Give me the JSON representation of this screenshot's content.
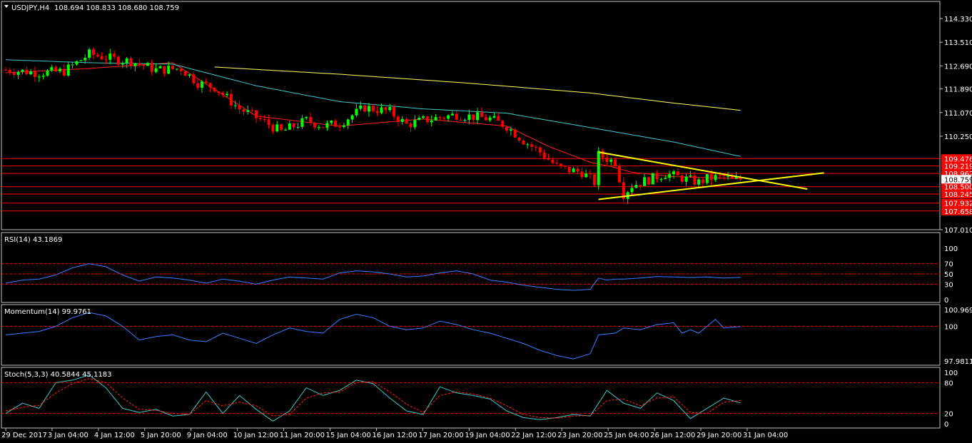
{
  "header": {
    "symbol": "USDJPY,H4",
    "ohlc": "108.694 108.833 108.680 108.759"
  },
  "colors": {
    "background": "#000000",
    "frame": "#c0c0c0",
    "bull": "#00ff00",
    "bear": "#ff0000",
    "ma_fast": "#ff2020",
    "ma_mid": "#40c8c8",
    "ma_slow": "#ffff60",
    "hline": "#ff0000",
    "trendline": "#ffff00",
    "oscillator": "#3c7cff",
    "signal": "#ff2020",
    "level": "#ff0000"
  },
  "chart_data": [
    {
      "type": "candlestick",
      "id": "price",
      "ylim": [
        107.01,
        114.33
      ],
      "y_ticks": [
        "114.330",
        "113.510",
        "112.690",
        "111.890",
        "111.070",
        "110.250",
        "107.010"
      ],
      "horizontal_levels": [
        {
          "value": 109.476,
          "label": "109.476"
        },
        {
          "value": 109.219,
          "label": "109.219"
        },
        {
          "value": 108.962,
          "label": "108.962"
        },
        {
          "value": 108.5,
          "label": "108.500"
        },
        {
          "value": 108.245,
          "label": "108.245"
        },
        {
          "value": 107.932,
          "label": "107.932"
        },
        {
          "value": 107.658,
          "label": "107.658"
        }
      ],
      "current_price": {
        "value": 108.759,
        "label": "108.759"
      },
      "trendlines": [
        {
          "x": [
            142,
            192
          ],
          "y": [
            109.7,
            108.42
          ]
        },
        {
          "x": [
            142,
            196
          ],
          "y": [
            108.06,
            108.98
          ]
        }
      ],
      "close_anchors": {
        "x": [
          0,
          8,
          14,
          20,
          26,
          30,
          36,
          42,
          46,
          50,
          56,
          62,
          66,
          72,
          76,
          80,
          86,
          92,
          96,
          100,
          108,
          116,
          120,
          124,
          128,
          132,
          134,
          138,
          141,
          142,
          146,
          148,
          150,
          154,
          158,
          162,
          166,
          168,
          172,
          174,
          176
        ],
        "y": [
          112.55,
          112.45,
          112.5,
          113.1,
          112.92,
          112.85,
          112.55,
          112.6,
          112.1,
          111.95,
          111.2,
          110.75,
          110.4,
          110.8,
          110.6,
          110.7,
          111.25,
          111.1,
          110.65,
          110.8,
          111.0,
          110.85,
          110.6,
          110.1,
          109.7,
          109.2,
          109.1,
          109.0,
          108.65,
          109.6,
          109.35,
          108.25,
          108.55,
          108.75,
          108.95,
          108.8,
          108.65,
          108.78,
          108.85,
          108.72,
          108.76
        ]
      },
      "moving_averages": [
        {
          "x": [
            0,
            20,
            40,
            60,
            80,
            100,
            120,
            130,
            140,
            145,
            150,
            160,
            176
          ],
          "y": [
            112.45,
            112.6,
            112.8,
            110.95,
            110.6,
            110.85,
            110.6,
            109.9,
            109.35,
            109.2,
            109.0,
            108.85,
            108.78
          ]
        },
        {
          "x": [
            0,
            20,
            40,
            60,
            80,
            100,
            120,
            140,
            160,
            176
          ],
          "y": [
            112.9,
            112.8,
            112.75,
            112.0,
            111.45,
            111.2,
            111.05,
            110.55,
            110.05,
            109.55
          ]
        },
        {
          "x": [
            50,
            80,
            110,
            140,
            160,
            176
          ],
          "y": [
            112.65,
            112.4,
            112.1,
            111.75,
            111.4,
            111.15
          ]
        }
      ]
    },
    {
      "type": "line",
      "id": "rsi",
      "title": "RSI(14) 43.1869",
      "ylim": [
        0,
        100
      ],
      "y_ticks": [
        100,
        70,
        50,
        30,
        0
      ],
      "levels": [
        70,
        50,
        30
      ],
      "x": [
        0,
        4,
        8,
        12,
        16,
        20,
        24,
        28,
        32,
        36,
        40,
        44,
        48,
        52,
        56,
        60,
        64,
        68,
        72,
        76,
        80,
        84,
        88,
        92,
        96,
        100,
        104,
        108,
        112,
        116,
        120,
        124,
        128,
        132,
        136,
        140,
        142,
        144,
        146,
        148,
        152,
        156,
        160,
        164,
        168,
        172,
        176
      ],
      "y": [
        32,
        38,
        40,
        48,
        62,
        70,
        64,
        48,
        36,
        44,
        42,
        38,
        32,
        40,
        36,
        30,
        38,
        44,
        42,
        40,
        52,
        56,
        54,
        50,
        44,
        46,
        52,
        56,
        50,
        38,
        34,
        28,
        24,
        20,
        18,
        20,
        42,
        38,
        40,
        40,
        42,
        45,
        44,
        43,
        44,
        42,
        43.19
      ]
    },
    {
      "type": "line",
      "id": "momentum",
      "title": "Momentum(14) 99.9761",
      "ylim": [
        97.9811,
        100.9696
      ],
      "y_ticks": [
        "100.9696",
        "100",
        "97.9811"
      ],
      "levels": [
        100
      ],
      "x": [
        0,
        4,
        8,
        12,
        16,
        20,
        24,
        28,
        32,
        36,
        40,
        44,
        48,
        52,
        56,
        60,
        64,
        68,
        72,
        76,
        80,
        84,
        88,
        92,
        96,
        100,
        104,
        108,
        112,
        116,
        120,
        124,
        128,
        132,
        136,
        140,
        142,
        146,
        148,
        152,
        156,
        160,
        162,
        164,
        166,
        170,
        172,
        176
      ],
      "y": [
        99.5,
        99.6,
        99.7,
        100.0,
        100.5,
        100.8,
        100.6,
        100.0,
        99.2,
        99.4,
        99.5,
        99.2,
        99.1,
        99.6,
        99.3,
        99.0,
        99.5,
        99.9,
        99.7,
        99.6,
        100.4,
        100.7,
        100.5,
        100.0,
        99.8,
        99.9,
        100.3,
        100.1,
        99.8,
        99.6,
        99.3,
        99.0,
        98.6,
        98.3,
        98.1,
        98.4,
        99.5,
        99.6,
        99.9,
        99.8,
        100.1,
        100.2,
        99.6,
        99.8,
        99.6,
        100.4,
        99.9,
        99.98
      ]
    },
    {
      "type": "line",
      "id": "stoch",
      "title": "Stoch(5,3,3) 40.5844 45.1183",
      "ylim": [
        0,
        100
      ],
      "y_ticks": [
        100,
        80,
        20,
        0
      ],
      "levels": [
        80,
        20
      ],
      "x": [
        0,
        4,
        8,
        12,
        16,
        20,
        24,
        28,
        32,
        36,
        40,
        44,
        48,
        52,
        56,
        60,
        64,
        68,
        72,
        76,
        80,
        84,
        88,
        92,
        96,
        100,
        104,
        108,
        112,
        116,
        120,
        124,
        128,
        132,
        136,
        140,
        144,
        148,
        152,
        156,
        160,
        164,
        168,
        172,
        176
      ],
      "y": [
        20,
        40,
        30,
        80,
        85,
        95,
        70,
        30,
        22,
        28,
        15,
        18,
        62,
        20,
        55,
        28,
        5,
        25,
        70,
        55,
        65,
        85,
        78,
        50,
        25,
        18,
        72,
        60,
        55,
        48,
        25,
        12,
        8,
        12,
        18,
        15,
        65,
        40,
        30,
        60,
        45,
        10,
        30,
        50,
        40.58
      ],
      "signal": {
        "x": [
          0,
          4,
          8,
          12,
          16,
          20,
          24,
          28,
          32,
          36,
          40,
          44,
          48,
          52,
          56,
          60,
          64,
          68,
          72,
          76,
          80,
          84,
          88,
          92,
          96,
          100,
          104,
          108,
          112,
          116,
          120,
          124,
          128,
          132,
          136,
          140,
          144,
          148,
          152,
          156,
          160,
          164,
          168,
          172,
          176
        ],
        "y": [
          25,
          32,
          36,
          60,
          78,
          88,
          80,
          50,
          28,
          26,
          20,
          18,
          45,
          35,
          42,
          35,
          15,
          18,
          50,
          60,
          62,
          80,
          82,
          62,
          38,
          22,
          55,
          62,
          58,
          50,
          35,
          18,
          12,
          11,
          15,
          16,
          45,
          48,
          35,
          50,
          52,
          22,
          20,
          42,
          45.12
        ]
      }
    }
  ],
  "time_axis": {
    "labels": [
      "29 Dec 2017",
      "3 Jan 04:00",
      "4 Jan 12:00",
      "5 Jan 20:00",
      "9 Jan 04:00",
      "10 Jan 12:00",
      "11 Jan 20:00",
      "15 Jan 04:00",
      "16 Jan 12:00",
      "17 Jan 20:00",
      "19 Jan 04:00",
      "22 Jan 12:00",
      "23 Jan 20:00",
      "25 Jan 04:00",
      "26 Jan 12:00",
      "29 Jan 20:00",
      "31 Jan 04:00"
    ],
    "label_bar_index": [
      0,
      10,
      20,
      30,
      40,
      50,
      60,
      70,
      80,
      90,
      100,
      110,
      120,
      130,
      140,
      150,
      160
    ]
  }
}
